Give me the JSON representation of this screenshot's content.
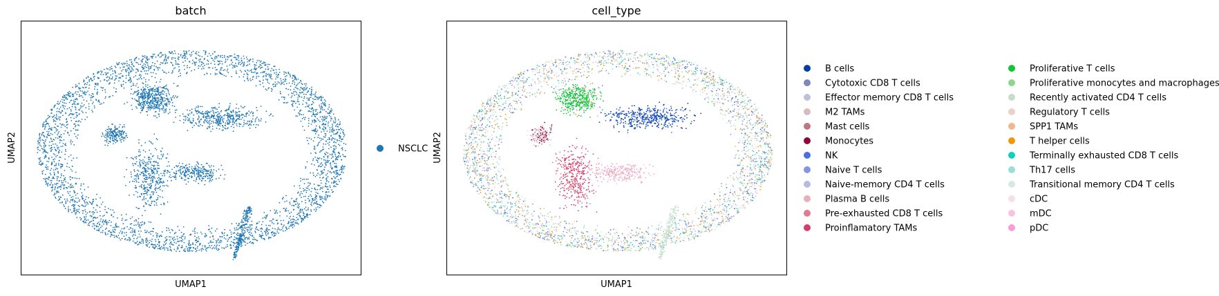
{
  "figure": {
    "panels": 2
  },
  "chart_data": [
    {
      "type": "scatter",
      "title": "batch",
      "xlabel": "UMAP1",
      "ylabel": "UMAP2",
      "grid": false,
      "ticks": false,
      "legend": {
        "placement": "right-outside",
        "columns": 1
      },
      "series": [
        {
          "name": "NSCLC",
          "color": "#1f77b4"
        }
      ]
    },
    {
      "type": "scatter",
      "title": "cell_type",
      "xlabel": "UMAP1",
      "ylabel": "UMAP2",
      "grid": false,
      "ticks": false,
      "legend": {
        "placement": "right-outside",
        "columns": 2
      },
      "series": [
        {
          "name": "B cells",
          "color": "#023fa5"
        },
        {
          "name": "Cytotoxic CD8 T cells",
          "color": "#7d87b9"
        },
        {
          "name": "Effector memory CD8 T cells",
          "color": "#bec1d4"
        },
        {
          "name": "M2 TAMs",
          "color": "#d6bcc0"
        },
        {
          "name": "Mast cells",
          "color": "#bb7784"
        },
        {
          "name": "Monocytes",
          "color": "#8e063b"
        },
        {
          "name": "NK",
          "color": "#4a6fe3"
        },
        {
          "name": "Naive T cells",
          "color": "#8595e1"
        },
        {
          "name": "Naive-memory CD4 T cells",
          "color": "#b5bbe3"
        },
        {
          "name": "Plasma B cells",
          "color": "#e6afb9"
        },
        {
          "name": "Pre-exhausted CD8 T cells",
          "color": "#e07b91"
        },
        {
          "name": "Proinflamatory TAMs",
          "color": "#d33f6a"
        },
        {
          "name": "Proliferative T cells",
          "color": "#11c638"
        },
        {
          "name": "Proliferative monocytes and macrophages",
          "color": "#8dd593"
        },
        {
          "name": "Recently activated CD4 T cells",
          "color": "#c6dec7"
        },
        {
          "name": "Regulatory T cells",
          "color": "#ead3c6"
        },
        {
          "name": "SPP1 TAMs",
          "color": "#f0b98d"
        },
        {
          "name": "T helper cells",
          "color": "#ef9708"
        },
        {
          "name": "Terminally exhausted CD8 T cells",
          "color": "#0fcfc0"
        },
        {
          "name": "Th17 cells",
          "color": "#9cded6"
        },
        {
          "name": "Transitional memory CD4 T cells",
          "color": "#d5eae7"
        },
        {
          "name": "cDC",
          "color": "#f3e1eb"
        },
        {
          "name": "mDC",
          "color": "#f6c4e1"
        },
        {
          "name": "pDC",
          "color": "#f79cd4"
        }
      ]
    }
  ]
}
